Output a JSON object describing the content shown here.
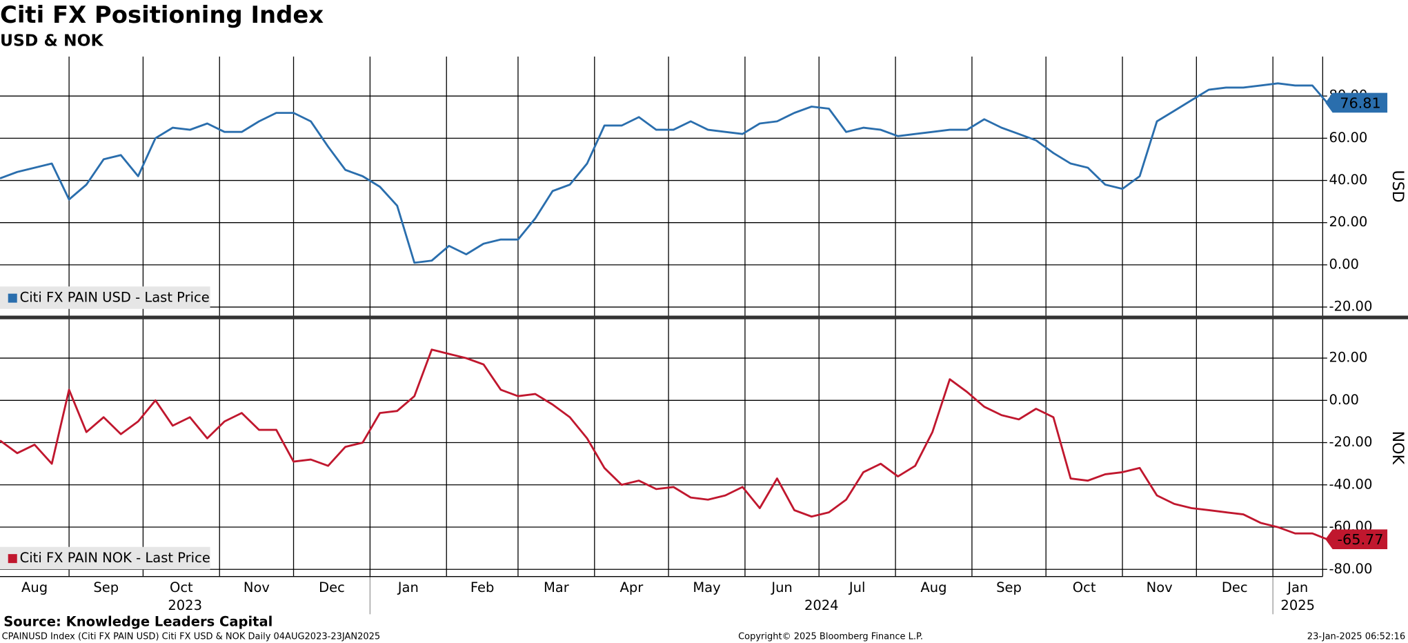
{
  "header": {
    "title": "Citi FX Positioning Index",
    "subtitle": "USD & NOK"
  },
  "footer": {
    "source": "Source: Knowledge Leaders Capital",
    "ticker": "CPAINUSD Index (Citi FX PAIN USD) Citi FX USD & NOK  Daily 04AUG2023-23JAN2025",
    "copyright": "Copyright© 2025 Bloomberg Finance L.P.",
    "timestamp": "23-Jan-2025 06:52:16"
  },
  "chart_data": [
    {
      "type": "line",
      "ylabel": "USD",
      "grid": true,
      "x": [
        "2023-08-04",
        "2023-08-11",
        "2023-08-18",
        "2023-08-25",
        "2023-09-01",
        "2023-09-08",
        "2023-09-15",
        "2023-09-22",
        "2023-09-29",
        "2023-10-06",
        "2023-10-13",
        "2023-10-20",
        "2023-10-27",
        "2023-11-03",
        "2023-11-10",
        "2023-11-17",
        "2023-11-24",
        "2023-12-01",
        "2023-12-08",
        "2023-12-15",
        "2023-12-22",
        "2023-12-29",
        "2024-01-05",
        "2024-01-12",
        "2024-01-19",
        "2024-01-26",
        "2024-02-02",
        "2024-02-09",
        "2024-02-16",
        "2024-02-23",
        "2024-03-01",
        "2024-03-08",
        "2024-03-15",
        "2024-03-22",
        "2024-03-29",
        "2024-04-05",
        "2024-04-12",
        "2024-04-19",
        "2024-04-26",
        "2024-05-03",
        "2024-05-10",
        "2024-05-17",
        "2024-05-24",
        "2024-05-31",
        "2024-06-07",
        "2024-06-14",
        "2024-06-21",
        "2024-06-28",
        "2024-07-05",
        "2024-07-12",
        "2024-07-19",
        "2024-07-26",
        "2024-08-02",
        "2024-08-09",
        "2024-08-16",
        "2024-08-23",
        "2024-08-30",
        "2024-09-06",
        "2024-09-13",
        "2024-09-20",
        "2024-09-27",
        "2024-10-04",
        "2024-10-11",
        "2024-10-18",
        "2024-10-25",
        "2024-11-01",
        "2024-11-08",
        "2024-11-15",
        "2024-11-22",
        "2024-11-29",
        "2024-12-06",
        "2024-12-13",
        "2024-12-20",
        "2024-12-27",
        "2025-01-03",
        "2025-01-10",
        "2025-01-17",
        "2025-01-23"
      ],
      "series": [
        {
          "name": "Citi FX PAIN USD - Last Price",
          "color": "#2a6ead",
          "values": [
            41,
            44,
            46,
            48,
            31,
            38,
            50,
            52,
            42,
            60,
            65,
            64,
            67,
            63,
            63,
            68,
            72,
            72,
            68,
            56,
            45,
            42,
            37,
            28,
            1,
            2,
            9,
            5,
            10,
            12,
            12,
            22,
            35,
            38,
            48,
            66,
            66,
            70,
            64,
            64,
            68,
            64,
            63,
            62,
            67,
            68,
            72,
            75,
            74,
            63,
            65,
            64,
            61,
            62,
            63,
            64,
            64,
            69,
            65,
            62,
            59,
            53,
            48,
            46,
            38,
            36,
            42,
            68,
            73,
            78,
            83,
            84,
            84,
            85,
            86,
            85,
            85,
            76.81
          ]
        }
      ],
      "ylim": [
        -24.3,
        98.7
      ],
      "yticks": [
        {
          "value": 80,
          "label": "80.00"
        },
        {
          "value": 60,
          "label": "60.00"
        },
        {
          "value": 40,
          "label": "40.00"
        },
        {
          "value": 20,
          "label": "20.00"
        },
        {
          "value": 0,
          "label": "0.00"
        },
        {
          "value": -20,
          "label": "-20.00"
        }
      ]
    },
    {
      "type": "line",
      "ylabel": "NOK",
      "grid": true,
      "x": [
        "2023-08-04",
        "2023-08-11",
        "2023-08-18",
        "2023-08-25",
        "2023-09-01",
        "2023-09-08",
        "2023-09-15",
        "2023-09-22",
        "2023-09-29",
        "2023-10-06",
        "2023-10-13",
        "2023-10-20",
        "2023-10-27",
        "2023-11-03",
        "2023-11-10",
        "2023-11-17",
        "2023-11-24",
        "2023-12-01",
        "2023-12-08",
        "2023-12-15",
        "2023-12-22",
        "2023-12-29",
        "2024-01-05",
        "2024-01-12",
        "2024-01-19",
        "2024-01-26",
        "2024-02-02",
        "2024-02-09",
        "2024-02-16",
        "2024-02-23",
        "2024-03-01",
        "2024-03-08",
        "2024-03-15",
        "2024-03-22",
        "2024-03-29",
        "2024-04-05",
        "2024-04-12",
        "2024-04-19",
        "2024-04-26",
        "2024-05-03",
        "2024-05-10",
        "2024-05-17",
        "2024-05-24",
        "2024-05-31",
        "2024-06-07",
        "2024-06-14",
        "2024-06-21",
        "2024-06-28",
        "2024-07-05",
        "2024-07-12",
        "2024-07-19",
        "2024-07-26",
        "2024-08-02",
        "2024-08-09",
        "2024-08-16",
        "2024-08-23",
        "2024-08-30",
        "2024-09-06",
        "2024-09-13",
        "2024-09-20",
        "2024-09-27",
        "2024-10-04",
        "2024-10-11",
        "2024-10-18",
        "2024-10-25",
        "2024-11-01",
        "2024-11-08",
        "2024-11-15",
        "2024-11-22",
        "2024-11-29",
        "2024-12-06",
        "2024-12-13",
        "2024-12-20",
        "2024-12-27",
        "2025-01-03",
        "2025-01-10",
        "2025-01-17",
        "2025-01-23"
      ],
      "series": [
        {
          "name": "Citi FX PAIN NOK - Last Price",
          "color": "#c0172e",
          "values": [
            -19,
            -25,
            -21,
            -30,
            5,
            -15,
            -8,
            -16,
            -10,
            0,
            -12,
            -8,
            -18,
            -10,
            -6,
            -14,
            -14,
            -29,
            -28,
            -31,
            -22,
            -20,
            -6,
            -5,
            2,
            24,
            22,
            20,
            17,
            5,
            2,
            3,
            -2,
            -8,
            -18,
            -32,
            -40,
            -38,
            -42,
            -41,
            -46,
            -47,
            -45,
            -41,
            -51,
            -37,
            -52,
            -55,
            -53,
            -47,
            -34,
            -30,
            -36,
            -31,
            -15,
            10,
            4,
            -3,
            -7,
            -9,
            -4,
            -8,
            -37,
            -38,
            -35,
            -34,
            -32,
            -45,
            -49,
            -51,
            -52,
            -53,
            -54,
            -58,
            -60,
            -63,
            -63,
            -65.77
          ]
        }
      ],
      "ylim": [
        -83.4,
        38.6
      ],
      "yticks": [
        {
          "value": 20,
          "label": "20.00"
        },
        {
          "value": 0,
          "label": "0.00"
        },
        {
          "value": -20,
          "label": "-20.00"
        },
        {
          "value": -40,
          "label": "-40.00"
        },
        {
          "value": -60,
          "label": "-60.00"
        },
        {
          "value": -80,
          "label": "-80.00"
        }
      ],
      "xticks": [
        {
          "value": "2023-08-01",
          "label": "Aug"
        },
        {
          "value": "2023-09-01",
          "label": "Sep"
        },
        {
          "value": "2023-10-01",
          "label": "Oct"
        },
        {
          "value": "2023-11-01",
          "label": "Nov"
        },
        {
          "value": "2023-12-01",
          "label": "Dec"
        },
        {
          "value": "2024-01-01",
          "label": "Jan"
        },
        {
          "value": "2024-02-01",
          "label": "Feb"
        },
        {
          "value": "2024-03-01",
          "label": "Mar"
        },
        {
          "value": "2024-04-01",
          "label": "Apr"
        },
        {
          "value": "2024-05-01",
          "label": "May"
        },
        {
          "value": "2024-06-01",
          "label": "Jun"
        },
        {
          "value": "2024-07-01",
          "label": "Jul"
        },
        {
          "value": "2024-08-01",
          "label": "Aug"
        },
        {
          "value": "2024-09-01",
          "label": "Sep"
        },
        {
          "value": "2024-10-01",
          "label": "Oct"
        },
        {
          "value": "2024-11-01",
          "label": "Nov"
        },
        {
          "value": "2024-12-01",
          "label": "Dec"
        },
        {
          "value": "2025-01-01",
          "label": "Jan"
        }
      ],
      "years": [
        2023,
        2024,
        2025
      ]
    }
  ]
}
